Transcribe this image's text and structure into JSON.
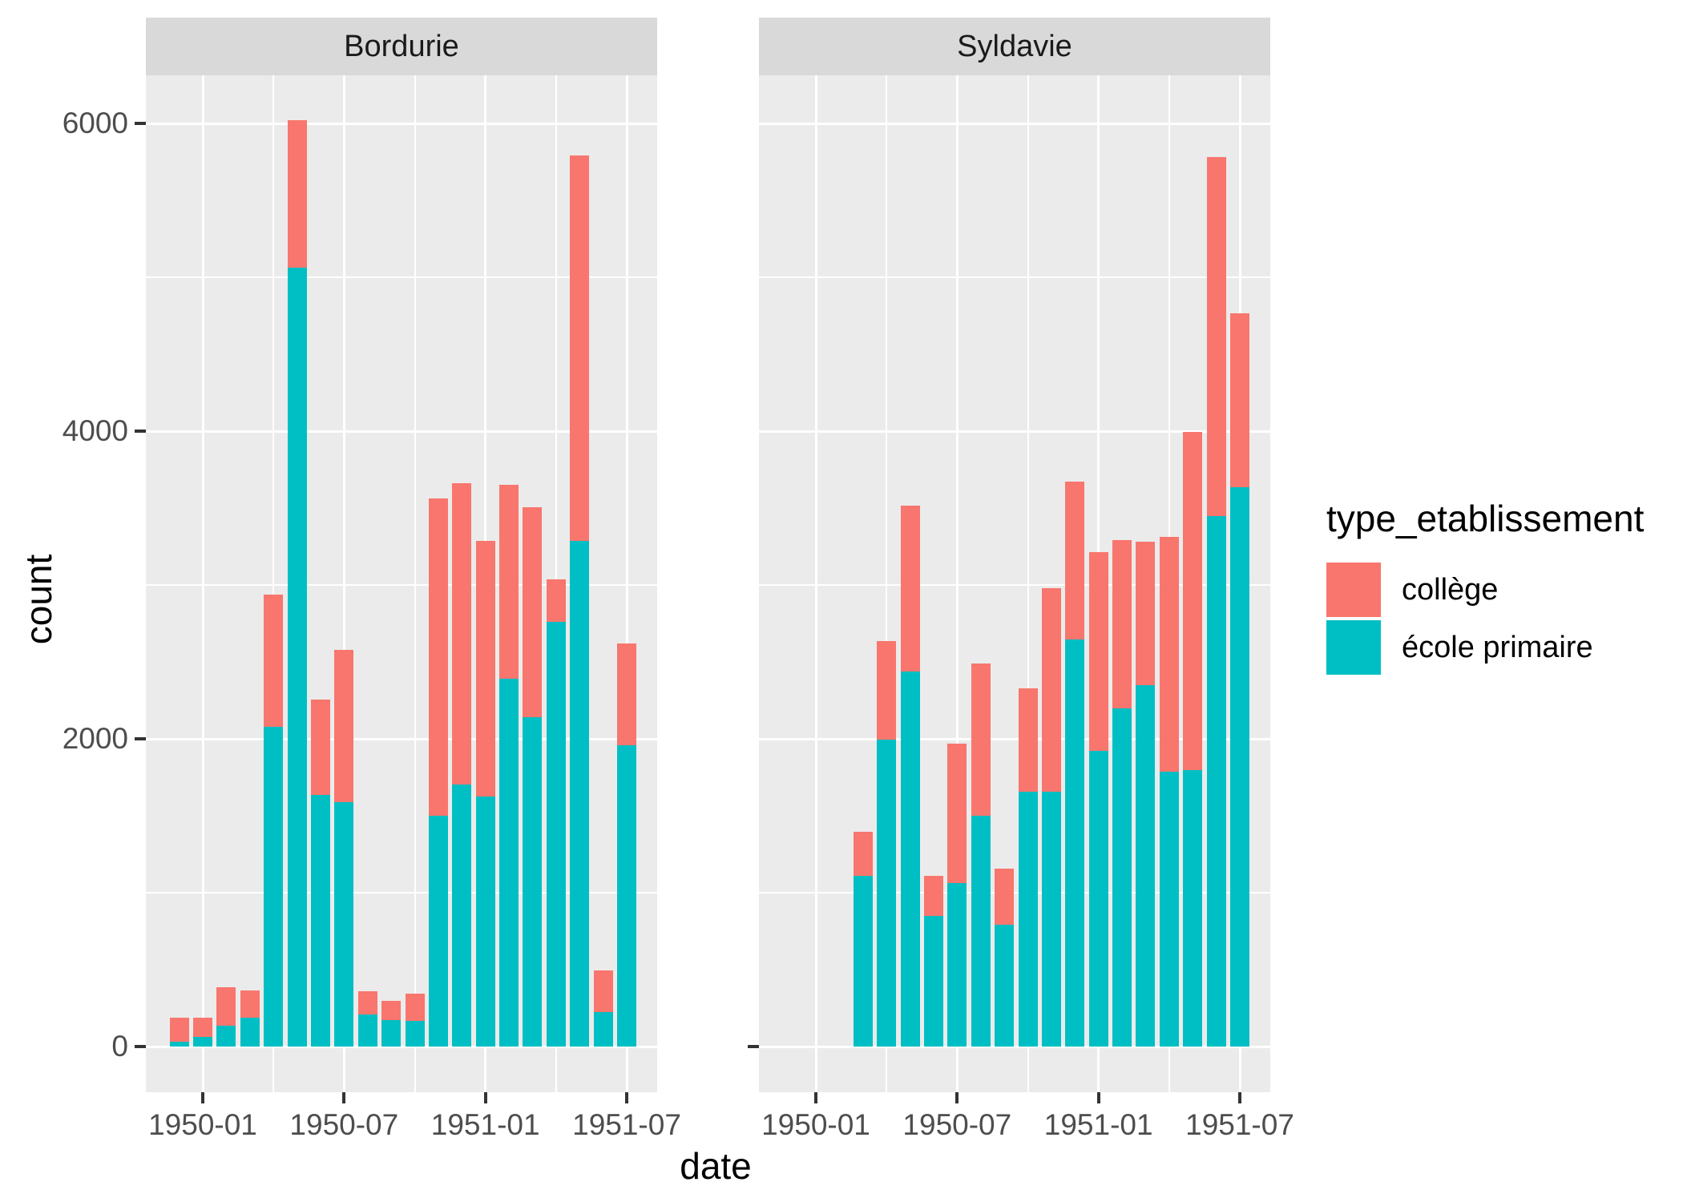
{
  "chart_data": {
    "type": "bar",
    "stacked": true,
    "xlabel": "date",
    "ylabel": "count",
    "legend_title": "type_etablissement",
    "series": [
      {
        "key": "college",
        "label": "collège",
        "color": "#F8766D"
      },
      {
        "key": "ecole",
        "label": "école primaire",
        "color": "#00BFC4"
      }
    ],
    "panel_background": "#EBEBEB",
    "strip_background": "#D9D9D9",
    "gridline_color": "#FFFFFF",
    "axis_text_color": "#4D4D4D",
    "y_axis": {
      "ticks": [
        0,
        2000,
        4000,
        6000
      ],
      "minor": [
        1000,
        3000,
        5000
      ],
      "range_top": 6318,
      "range_bottom": -312
    },
    "x_axis": {
      "tick_labels": [
        "1950-01",
        "1950-07",
        "1951-01",
        "1951-07"
      ],
      "tick_months": [
        0,
        6,
        12,
        18
      ],
      "minor_months": [
        3,
        9,
        15
      ]
    },
    "facets": [
      {
        "label": "Bordurie",
        "bars": [
          {
            "date": "1949-12",
            "ecole": 30,
            "college": 160
          },
          {
            "date": "1950-01",
            "ecole": 65,
            "college": 125
          },
          {
            "date": "1950-02",
            "ecole": 135,
            "college": 250
          },
          {
            "date": "1950-03",
            "ecole": 190,
            "college": 175
          },
          {
            "date": "1950-04",
            "ecole": 2080,
            "college": 860
          },
          {
            "date": "1950-05",
            "ecole": 5060,
            "college": 960
          },
          {
            "date": "1950-06",
            "ecole": 1635,
            "college": 620
          },
          {
            "date": "1950-07",
            "ecole": 1590,
            "college": 990
          },
          {
            "date": "1950-08",
            "ecole": 210,
            "college": 150
          },
          {
            "date": "1950-09",
            "ecole": 170,
            "college": 125
          },
          {
            "date": "1950-10",
            "ecole": 165,
            "college": 180
          },
          {
            "date": "1950-11",
            "ecole": 1500,
            "college": 2065
          },
          {
            "date": "1950-12",
            "ecole": 1705,
            "college": 1955
          },
          {
            "date": "1951-01",
            "ecole": 1625,
            "college": 1660
          },
          {
            "date": "1951-02",
            "ecole": 2390,
            "college": 1260
          },
          {
            "date": "1951-03",
            "ecole": 2140,
            "college": 1365
          },
          {
            "date": "1951-04",
            "ecole": 2760,
            "college": 275
          },
          {
            "date": "1951-05",
            "ecole": 3285,
            "college": 2505
          },
          {
            "date": "1951-06",
            "ecole": 225,
            "college": 270
          },
          {
            "date": "1951-07",
            "ecole": 1960,
            "college": 660
          }
        ]
      },
      {
        "label": "Syldavie",
        "bars": [
          {
            "date": "1950-03",
            "ecole": 1110,
            "college": 285
          },
          {
            "date": "1950-04",
            "ecole": 1995,
            "college": 640
          },
          {
            "date": "1950-05",
            "ecole": 2440,
            "college": 1075
          },
          {
            "date": "1950-06",
            "ecole": 850,
            "college": 260
          },
          {
            "date": "1950-07",
            "ecole": 1060,
            "college": 910
          },
          {
            "date": "1950-08",
            "ecole": 1500,
            "college": 990
          },
          {
            "date": "1950-09",
            "ecole": 790,
            "college": 365
          },
          {
            "date": "1950-10",
            "ecole": 1655,
            "college": 675
          },
          {
            "date": "1950-11",
            "ecole": 1655,
            "college": 1325
          },
          {
            "date": "1950-12",
            "ecole": 2645,
            "college": 1025
          },
          {
            "date": "1951-01",
            "ecole": 1920,
            "college": 1295
          },
          {
            "date": "1951-02",
            "ecole": 2200,
            "college": 1090
          },
          {
            "date": "1951-03",
            "ecole": 2350,
            "college": 930
          },
          {
            "date": "1951-04",
            "ecole": 1785,
            "college": 1530
          },
          {
            "date": "1951-05",
            "ecole": 1795,
            "college": 2200
          },
          {
            "date": "1951-06",
            "ecole": 3450,
            "college": 2330
          },
          {
            "date": "1951-07",
            "ecole": 3635,
            "college": 1130
          }
        ]
      }
    ]
  }
}
